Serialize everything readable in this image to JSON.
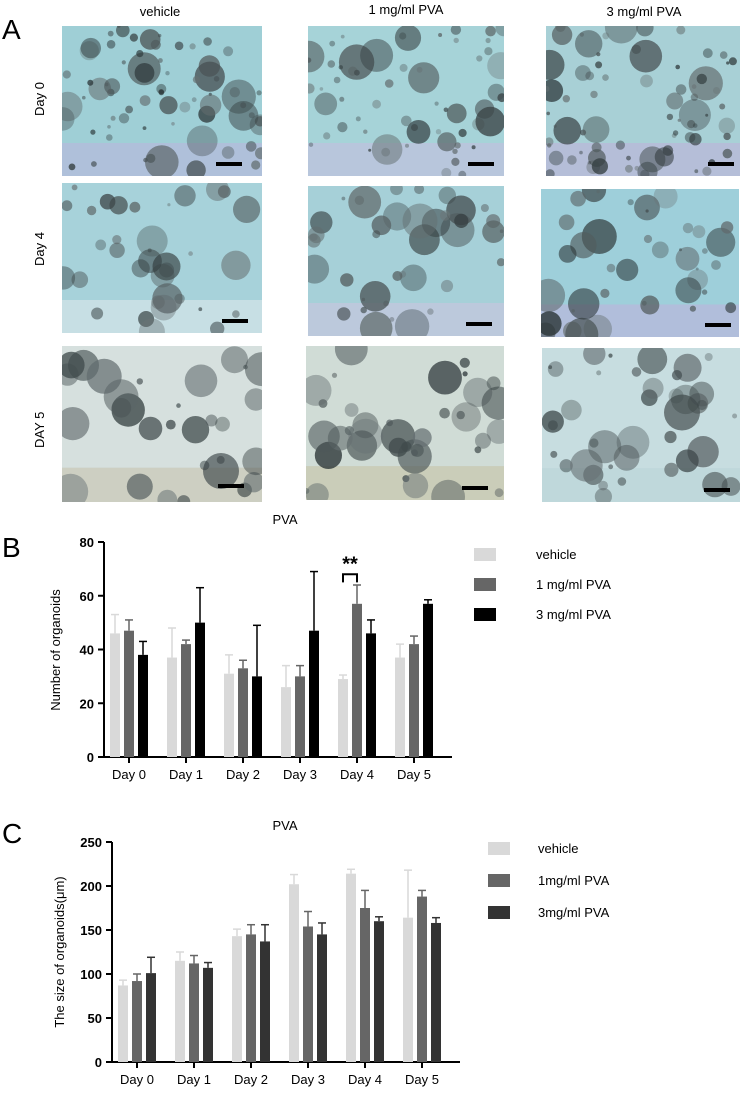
{
  "figure": {
    "panel_labels": [
      "A",
      "B",
      "C"
    ],
    "panel_a": {
      "columns": [
        "vehicle",
        "1 mg/ml PVA",
        "3 mg/ml PVA"
      ],
      "rows": [
        "Day 0",
        "Day 4",
        "DAY 5"
      ]
    }
  },
  "colors": {
    "vehicle": "#d9d9d9",
    "mid": "#666666",
    "high_b": "#000000",
    "high_c": "#333333"
  },
  "chart_data": [
    {
      "type": "bar",
      "title": "PVA",
      "ylabel": "Number of organoids",
      "xlabel": "",
      "ylim": [
        0,
        80
      ],
      "yticks": [
        "0",
        "20",
        "40",
        "60",
        "80"
      ],
      "categories": [
        "Day 0",
        "Day 1",
        "Day 2",
        "Day 3",
        "Day 4",
        "Day 5"
      ],
      "series": [
        {
          "name": "vehicle",
          "values": [
            46,
            37,
            31,
            26,
            29,
            37
          ],
          "error": [
            7,
            11,
            7,
            8,
            1.5,
            5
          ]
        },
        {
          "name": "1 mg/ml PVA",
          "values": [
            47,
            42,
            33,
            30,
            57,
            42
          ],
          "error": [
            4,
            1.5,
            3,
            4,
            7,
            3
          ]
        },
        {
          "name": "3 mg/ml PVA",
          "values": [
            38,
            50,
            30,
            47,
            46,
            57
          ],
          "error": [
            5,
            13,
            19,
            22,
            5,
            1.5
          ]
        }
      ],
      "annotation": "**",
      "legend": "right"
    },
    {
      "type": "bar",
      "title": "PVA",
      "ylabel": "The size of organoids(μm)",
      "xlabel": "",
      "ylim": [
        0,
        250
      ],
      "yticks": [
        "0",
        "50",
        "100",
        "150",
        "200",
        "250"
      ],
      "categories": [
        "Day 0",
        "Day 1",
        "Day 2",
        "Day 3",
        "Day 4",
        "Day 5"
      ],
      "series": [
        {
          "name": "vehicle",
          "values": [
            87,
            115,
            143,
            202,
            214,
            164
          ],
          "error": [
            6,
            10,
            8,
            11,
            5,
            54
          ]
        },
        {
          "name": "1mg/ml PVA",
          "values": [
            92,
            112,
            145,
            154,
            175,
            188
          ],
          "error": [
            8,
            9,
            11,
            17,
            20,
            7
          ]
        },
        {
          "name": "3mg/ml PVA",
          "values": [
            101,
            107,
            137,
            145,
            160,
            158
          ],
          "error": [
            18,
            6,
            19,
            13,
            5,
            6
          ]
        }
      ],
      "legend": "right"
    }
  ]
}
